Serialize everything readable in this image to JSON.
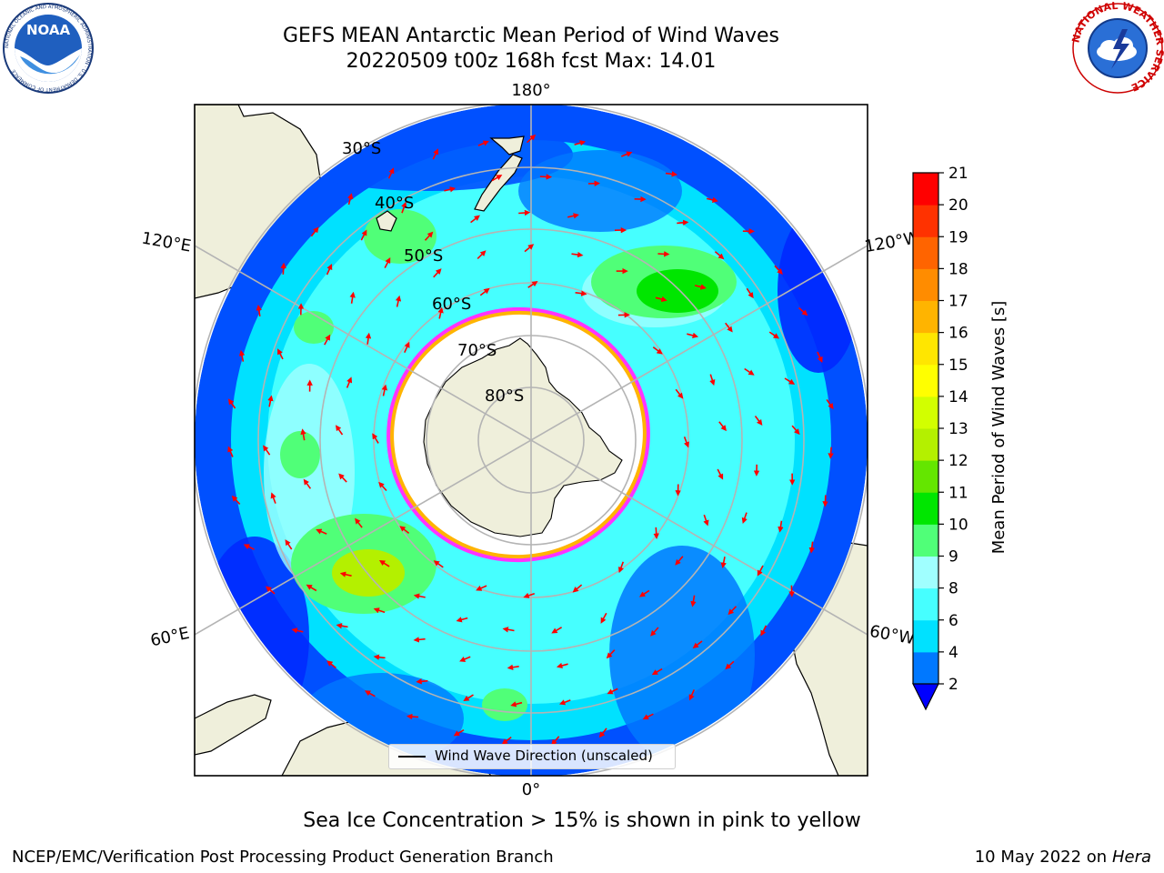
{
  "header": {
    "title_line1": "GEFS MEAN Antarctic Mean Period of Wind Waves",
    "title_line2": "20220509 t00z 168h fcst   Max: 14.01"
  },
  "logos": {
    "noaa_text": "NOAA",
    "noaa_ring_text": "NATIONAL OCEANIC AND ATMOSPHERIC ADMINISTRATION · U.S. DEPARTMENT OF COMMERCE",
    "nws_ring_text": "NATIONAL WEATHER SERVICE"
  },
  "map": {
    "longitude_labels": {
      "top": "180°",
      "bottom": "0°",
      "left_upper": "120°E",
      "left_lower": "60°E",
      "right_upper": "120°W",
      "right_lower": "60°W"
    },
    "latitude_labels": [
      "30°S",
      "40°S",
      "50°S",
      "60°S",
      "70°S",
      "80°S"
    ],
    "legend_label": "Wind Wave Direction (unscaled)"
  },
  "colorbar": {
    "label": "Mean Period of Wind Waves [s]",
    "ticks": [
      "2",
      "4",
      "6",
      "8",
      "9",
      "10",
      "11",
      "12",
      "13",
      "14",
      "15",
      "16",
      "17",
      "18",
      "19",
      "20",
      "21"
    ],
    "colors": [
      "#0078ff",
      "#00e1ff",
      "#46ffff",
      "#a0ffff",
      "#50ff78",
      "#00e600",
      "#64e600",
      "#b4f000",
      "#d2ff00",
      "#ffff00",
      "#ffe600",
      "#ffb400",
      "#ff8c00",
      "#ff6400",
      "#ff3200",
      "#ff0000"
    ],
    "under_color": "#0000ff"
  },
  "footer": {
    "caption": "Sea Ice Concentration > 15% is shown in pink to yellow",
    "left": "NCEP/EMC/Verification Post Processing Product Generation Branch",
    "right_date": "10 May 2022 on",
    "right_machine": "Hera"
  }
}
